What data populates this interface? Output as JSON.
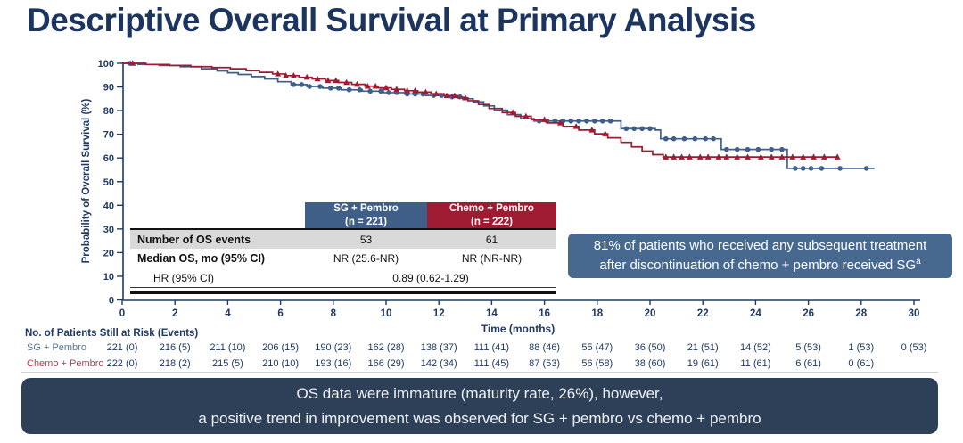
{
  "slide_title": "Descriptive Overall Survival at Primary Analysis",
  "colors": {
    "title_navy": "#1c355e",
    "axis_navy": "#1f3864",
    "sg_blue": "#3d5f8a",
    "chemo_red": "#9e1b32",
    "table_gray_row": "#d9d9d9",
    "callout_bg": "#47688f",
    "footer_bg": "#2e4057"
  },
  "chart_data": {
    "type": "line",
    "subtype": "kaplan_meier_step",
    "title": "",
    "xlabel": "Time (months)",
    "ylabel": "Probability of Overall Survival (%)",
    "xlim": [
      0,
      30
    ],
    "ylim": [
      0,
      100
    ],
    "xticks": [
      0,
      2,
      4,
      6,
      8,
      10,
      12,
      14,
      16,
      18,
      20,
      22,
      24,
      26,
      28,
      30
    ],
    "yticks": [
      0,
      10,
      20,
      30,
      40,
      50,
      60,
      70,
      80,
      90,
      100
    ],
    "grid": false,
    "legend_position": "none (legend provided by embedded stats table)",
    "series": [
      {
        "name": "SG + Pembro",
        "n": 221,
        "color": "#3d5f8a",
        "marker": "circle",
        "points": [
          [
            0,
            100
          ],
          [
            0.6,
            99.5
          ],
          [
            1.4,
            99.1
          ],
          [
            2.2,
            98.6
          ],
          [
            3.0,
            97.7
          ],
          [
            3.6,
            96.8
          ],
          [
            4.0,
            96.0
          ],
          [
            4.4,
            95.3
          ],
          [
            4.9,
            94.4
          ],
          [
            5.4,
            93.4
          ],
          [
            5.9,
            92.2
          ],
          [
            6.4,
            91.0
          ],
          [
            7.0,
            90.2
          ],
          [
            7.6,
            89.5
          ],
          [
            8.3,
            88.8
          ],
          [
            9.1,
            88.2
          ],
          [
            9.9,
            87.6
          ],
          [
            10.7,
            87.0
          ],
          [
            11.5,
            86.4
          ],
          [
            12.3,
            85.8
          ],
          [
            12.9,
            85.0
          ],
          [
            13.3,
            83.7
          ],
          [
            13.7,
            82.0
          ],
          [
            14.1,
            80.2
          ],
          [
            14.6,
            78.3
          ],
          [
            15.1,
            76.6
          ],
          [
            15.6,
            75.6
          ],
          [
            18.7,
            75.6
          ],
          [
            18.9,
            72.4
          ],
          [
            20.2,
            71.8
          ],
          [
            20.4,
            68.1
          ],
          [
            22.5,
            68.1
          ],
          [
            22.7,
            63.6
          ],
          [
            25.1,
            63.6
          ],
          [
            25.2,
            55.6
          ],
          [
            28.5,
            55.6
          ]
        ],
        "censor_times": [
          0.3,
          6.5,
          6.8,
          7.1,
          7.5,
          7.9,
          8.2,
          8.6,
          9.0,
          9.4,
          9.8,
          10.1,
          10.4,
          10.8,
          11.1,
          11.4,
          11.8,
          12.1,
          12.5,
          12.8,
          15.8,
          16.1,
          16.4,
          16.7,
          17.0,
          17.3,
          17.6,
          17.9,
          18.2,
          18.5,
          19.1,
          19.4,
          19.7,
          20.0,
          20.6,
          20.9,
          21.3,
          21.7,
          22.1,
          22.4,
          22.9,
          23.3,
          23.7,
          24.1,
          24.6,
          25.0,
          25.5,
          25.8,
          26.1,
          26.5,
          27.2,
          28.2
        ]
      },
      {
        "name": "Chemo + Pembro",
        "n": 222,
        "color": "#9e1b32",
        "marker": "triangle",
        "points": [
          [
            0,
            100
          ],
          [
            0.9,
            99.5
          ],
          [
            1.8,
            99.1
          ],
          [
            2.6,
            98.6
          ],
          [
            3.4,
            98.2
          ],
          [
            4.1,
            97.7
          ],
          [
            4.7,
            96.9
          ],
          [
            5.2,
            96.2
          ],
          [
            5.7,
            95.5
          ],
          [
            6.2,
            94.8
          ],
          [
            6.7,
            94.1
          ],
          [
            7.2,
            93.4
          ],
          [
            7.7,
            92.7
          ],
          [
            8.2,
            91.9
          ],
          [
            8.7,
            91.1
          ],
          [
            9.2,
            90.3
          ],
          [
            9.7,
            89.6
          ],
          [
            10.2,
            89.0
          ],
          [
            10.7,
            88.4
          ],
          [
            11.2,
            87.8
          ],
          [
            11.7,
            87.1
          ],
          [
            12.2,
            86.3
          ],
          [
            12.7,
            85.4
          ],
          [
            13.1,
            84.2
          ],
          [
            13.5,
            82.6
          ],
          [
            13.9,
            80.9
          ],
          [
            14.4,
            79.2
          ],
          [
            14.9,
            77.6
          ],
          [
            15.5,
            76.2
          ],
          [
            16.1,
            74.8
          ],
          [
            16.7,
            73.3
          ],
          [
            17.3,
            71.8
          ],
          [
            17.9,
            70.2
          ],
          [
            18.4,
            68.5
          ],
          [
            18.9,
            66.6
          ],
          [
            19.3,
            64.7
          ],
          [
            19.7,
            62.9
          ],
          [
            20.1,
            61.4
          ],
          [
            20.5,
            60.4
          ],
          [
            27.1,
            60.4
          ]
        ],
        "censor_times": [
          0.4,
          5.9,
          6.2,
          6.5,
          7.0,
          7.4,
          7.8,
          8.1,
          8.5,
          8.9,
          9.3,
          9.6,
          10.0,
          10.4,
          10.8,
          11.1,
          11.5,
          11.9,
          12.3,
          12.6,
          13.0,
          14.8,
          15.3,
          16.0,
          16.6,
          17.2,
          17.8,
          18.3,
          20.6,
          20.9,
          21.2,
          21.5,
          21.9,
          22.2,
          22.6,
          22.9,
          23.3,
          23.7,
          24.2,
          24.6,
          25.0,
          25.4,
          25.8,
          26.2,
          26.6,
          27.1
        ]
      }
    ]
  },
  "stats_table": {
    "col_headers": [
      {
        "line1": "SG + Pembro",
        "line2": "(n = 221)"
      },
      {
        "line1": "Chemo + Pembro",
        "line2": "(n = 222)"
      }
    ],
    "rows": [
      {
        "label": "Number of OS events",
        "values": [
          "53",
          "61"
        ]
      },
      {
        "label": "Median OS, mo (95% CI)",
        "values": [
          "NR (25.6-NR)",
          "NR (NR-NR)"
        ]
      },
      {
        "label": "HR (95% CI)",
        "values": [
          "0.89 (0.62-1.29)"
        ]
      }
    ]
  },
  "callout": {
    "line1": "81% of patients who received any subsequent treatment",
    "line2": "after discontinuation of chemo + pembro received SG",
    "footnote_marker": "a"
  },
  "risk_table": {
    "title": "No. of Patients Still at Risk (Events)",
    "times": [
      0,
      2,
      4,
      6,
      8,
      10,
      12,
      14,
      16,
      18,
      20,
      22,
      24,
      26,
      28,
      30
    ],
    "rows": [
      {
        "label": "SG + Pembro",
        "label_color": "#56759a",
        "values": [
          "221 (0)",
          "216 (5)",
          "211 (10)",
          "206 (15)",
          "190 (23)",
          "162 (28)",
          "138 (37)",
          "111 (41)",
          "88 (46)",
          "55 (47)",
          "36 (50)",
          "21 (51)",
          "14 (52)",
          "5 (53)",
          "1 (53)",
          "0 (53)"
        ]
      },
      {
        "label": "Chemo + Pembro",
        "label_color": "#ac4254",
        "values": [
          "222 (0)",
          "218 (2)",
          "215 (5)",
          "210 (10)",
          "193 (16)",
          "166 (29)",
          "142 (34)",
          "111 (45)",
          "87 (53)",
          "56 (58)",
          "38 (60)",
          "19 (61)",
          "11 (61)",
          "6 (61)",
          "0 (61)"
        ]
      }
    ]
  },
  "footer": {
    "line1": "OS data were immature (maturity rate, 26%), however,",
    "line2": "a positive trend in improvement was observed for SG + pembro vs chemo + pembro"
  }
}
